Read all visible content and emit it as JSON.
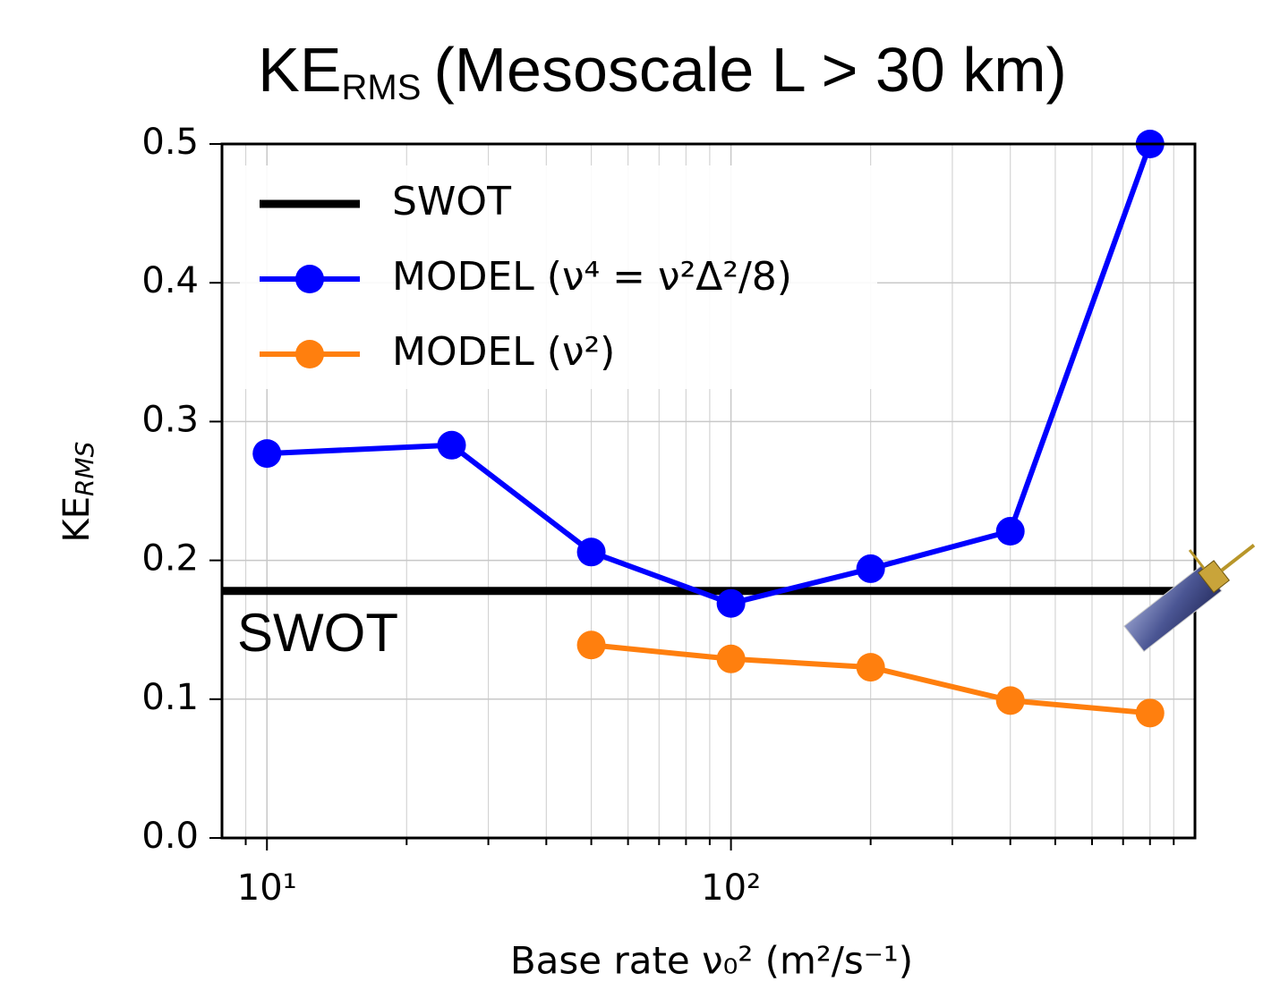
{
  "chart_data": {
    "type": "line",
    "title": [
      "KE",
      "RMS",
      "(Mesoscale L > 30 km)"
    ],
    "ylabel": [
      "KE",
      "RMS"
    ],
    "xlabel": "Base rate ν₀² (m²/s⁻¹)",
    "annotation": "SWOT",
    "x": [
      10,
      25,
      50,
      100,
      200,
      400,
      800
    ],
    "series": [
      {
        "name": "SWOT",
        "color": "#000000",
        "hline": 0.178
      },
      {
        "name": "MODEL (ν⁴ = ν²Δ²/8)",
        "color": "#0000ff",
        "values": [
          0.277,
          0.283,
          0.206,
          0.169,
          0.194,
          0.221,
          0.5
        ]
      },
      {
        "name": "MODEL (ν²)",
        "color": "#ff7f0e",
        "values": [
          null,
          null,
          0.139,
          0.129,
          0.123,
          0.099,
          0.09
        ]
      }
    ],
    "xlim": [
      8,
      1000
    ],
    "xlog": true,
    "xticks": [
      {
        "value": 10,
        "label": "10¹"
      },
      {
        "value": 100,
        "label": "10²"
      }
    ],
    "xminorticks": [
      9,
      20,
      30,
      40,
      50,
      60,
      70,
      80,
      90,
      200,
      300,
      400,
      500,
      600,
      700,
      800,
      900
    ],
    "ylim": [
      0,
      0.5
    ],
    "yticks": [
      {
        "value": 0,
        "label": "0.0"
      },
      0.1,
      0.2,
      0.3,
      0.4,
      0.5
    ],
    "grid": true,
    "legend": "upper left"
  }
}
